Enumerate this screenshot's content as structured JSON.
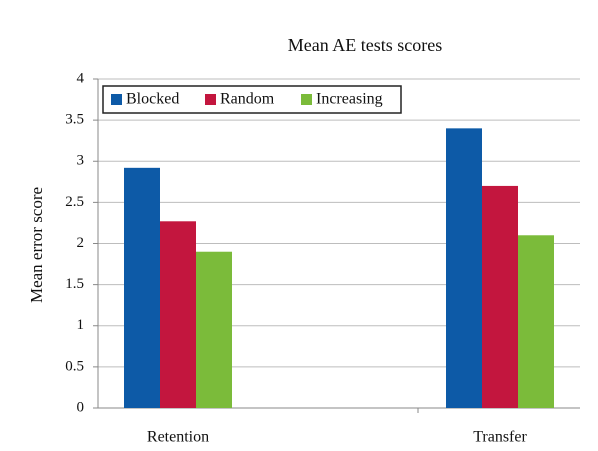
{
  "chart_data": {
    "type": "bar",
    "title": "Mean AE tests scores",
    "y_label": "Mean error score",
    "categories": [
      "Retention",
      "Transfer"
    ],
    "series": [
      {
        "name": "Blocked",
        "color": "#0d5aa7",
        "values": [
          2.92,
          3.4
        ]
      },
      {
        "name": "Random",
        "color": "#c3163e",
        "values": [
          2.27,
          2.7
        ]
      },
      {
        "name": "Increasing",
        "color": "#7bbb3a",
        "values": [
          1.9,
          2.1
        ]
      }
    ],
    "ylim": [
      0,
      4
    ],
    "yticks": [
      0,
      0.5,
      1,
      1.5,
      2,
      2.5,
      3,
      3.5,
      4
    ],
    "grid": true,
    "legend": "top-left"
  }
}
